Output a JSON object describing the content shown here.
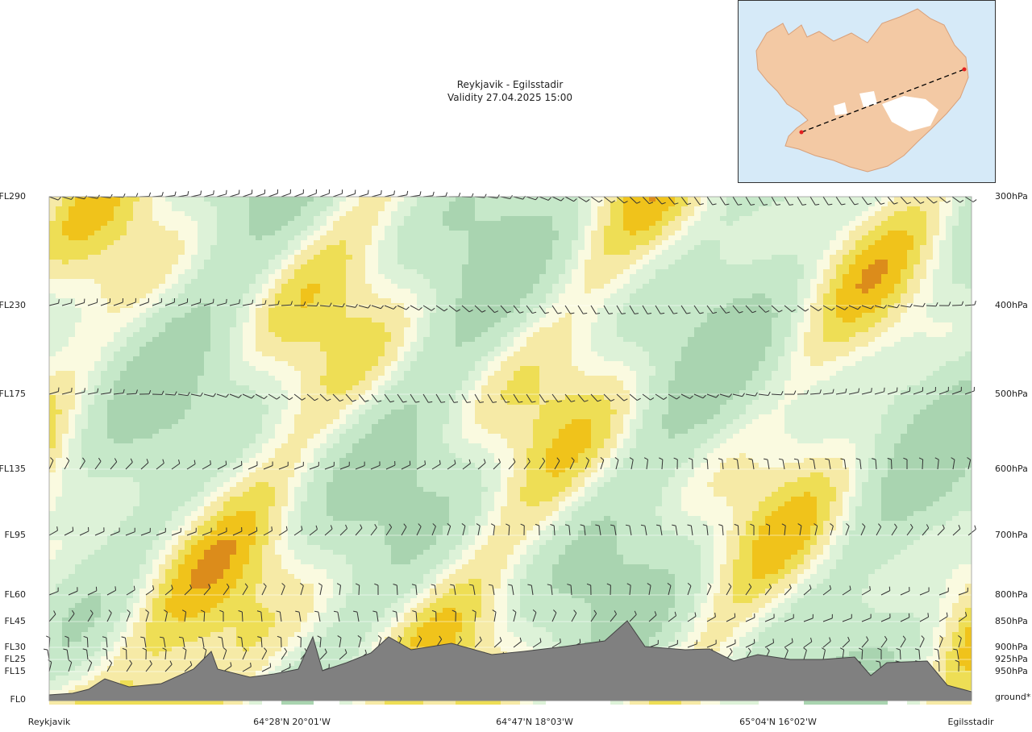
{
  "title": {
    "line1": "Reykjavik - Egilsstadir",
    "line2": "Validity 27.04.2025 15:00"
  },
  "map": {
    "land_icon": "iceland-map",
    "sea_color": "#d6eaf8",
    "land_color": "#f3c9a4",
    "glacier_color": "#ffffff",
    "route_color": "#000000",
    "endpoint_color": "#e32020"
  },
  "chart_data": {
    "type": "heatmap",
    "title": "Reykjavik - Egilsstadir",
    "subtitle": "Validity 27.04.2025 15:00",
    "flight_levels": [
      {
        "fl": "FL290",
        "p": "300hPa"
      },
      {
        "fl": "FL230",
        "p": "400hPa"
      },
      {
        "fl": "FL175",
        "p": "500hPa"
      },
      {
        "fl": "FL135",
        "p": "600hPa"
      },
      {
        "fl": "FL95",
        "p": "700hPa"
      },
      {
        "fl": "FL60",
        "p": "800hPa"
      },
      {
        "fl": "FL45",
        "p": "850hPa"
      },
      {
        "fl": "FL30",
        "p": "900hPa"
      },
      {
        "fl": "FL25",
        "p": "925hPa"
      },
      {
        "fl": "FL15",
        "p": "950hPa"
      },
      {
        "fl": "FL0",
        "p": "ground*"
      }
    ],
    "x_labels": [
      "Reykjavik",
      "64°28'N 20°01'W",
      "64°47'N 18°03'W",
      "65°04'N 16°02'W",
      "Egilsstadir"
    ],
    "color_classes": [
      "#a9d4b0",
      "#c6e8c9",
      "#ddf2d8",
      "#fafae0",
      "#f6eaa6",
      "#eede55",
      "#f0c31b",
      "#dc8c1b",
      "#c0651f"
    ],
    "terrain_color": "#808080"
  }
}
